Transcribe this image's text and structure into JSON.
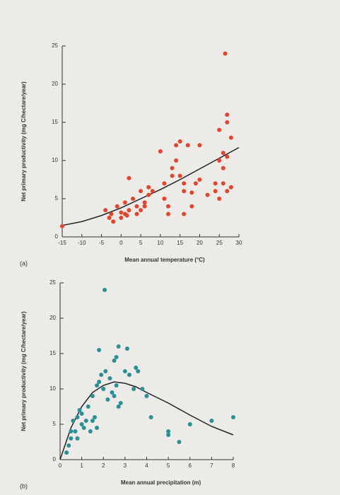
{
  "chart_data": [
    {
      "type": "scatter",
      "panel_label": "(a)",
      "x_label": "Mean annual temperature (°C)",
      "y_label": "Net primary productivity (mg C/hectare/year)",
      "color": "#e2452c",
      "line_color": "#222222",
      "points": {
        "x": [
          -15,
          -4,
          -3,
          -2.5,
          -2,
          -1,
          0,
          0,
          1,
          1,
          1.5,
          2,
          2,
          3,
          4,
          4,
          5,
          5,
          6,
          6,
          7,
          7,
          8,
          10,
          11,
          11,
          12,
          12,
          13,
          13,
          14,
          14,
          15,
          15,
          16,
          16,
          16,
          17,
          18,
          18,
          19,
          20,
          20,
          22,
          24,
          24,
          25,
          25,
          25,
          26,
          26,
          26,
          27,
          27,
          27,
          27,
          28,
          28,
          26.5
        ],
        "values": [
          1.4,
          3.5,
          2.5,
          3,
          2,
          4,
          3.2,
          2.5,
          4.5,
          3,
          2.8,
          3.5,
          7.7,
          5,
          4,
          3,
          3.5,
          6,
          4,
          4.5,
          6.5,
          5.5,
          6,
          11.2,
          7,
          5,
          4,
          3,
          8,
          9,
          10,
          12,
          12.5,
          8,
          6,
          7,
          3,
          12,
          5.8,
          4,
          7,
          12,
          7.5,
          5.5,
          6,
          7,
          5,
          10,
          14,
          11,
          9,
          7,
          6,
          10.5,
          15,
          16,
          13,
          6.5,
          24
        ]
      },
      "trend": {
        "x": [
          -15,
          -10,
          -5,
          0,
          5,
          10,
          15,
          20,
          25,
          30
        ],
        "values": [
          1.5,
          2,
          2.8,
          3.8,
          5,
          6.2,
          7.5,
          8.9,
          10.3,
          11.7
        ]
      },
      "xlim": [
        -15,
        30
      ],
      "xticks": [
        -15,
        -10,
        -5,
        0,
        5,
        10,
        15,
        20,
        25,
        30
      ],
      "ylim": [
        0,
        25
      ],
      "yticks": [
        0,
        5,
        10,
        15,
        20,
        25
      ]
    },
    {
      "type": "scatter",
      "panel_label": "(b)",
      "x_label": "Mean annual precipitation (m)",
      "y_label": "Net primary productivity (mg C/hectare/year)",
      "color": "#2b8f96",
      "line_color": "#222222",
      "points": {
        "x": [
          0.3,
          0.4,
          0.5,
          0.5,
          0.6,
          0.7,
          0.8,
          0.8,
          0.9,
          1,
          1,
          1.1,
          1.2,
          1.3,
          1.4,
          1.5,
          1.5,
          1.6,
          1.7,
          1.7,
          1.8,
          1.8,
          1.9,
          2,
          2.06,
          2.1,
          2.2,
          2.3,
          2.4,
          2.5,
          2.5,
          2.6,
          2.6,
          2.7,
          2.7,
          2.8,
          3,
          3.1,
          3.2,
          3.4,
          3.5,
          3.6,
          3.8,
          4,
          4.2,
          5,
          5,
          5.5,
          6,
          7,
          8
        ],
        "values": [
          1,
          2,
          3,
          4,
          5.5,
          4,
          3,
          6,
          7,
          5,
          6.5,
          4.5,
          5.5,
          7.5,
          4,
          5.5,
          9,
          6,
          4.5,
          10.5,
          11,
          15.5,
          12,
          10,
          24,
          12.5,
          8.5,
          11.5,
          9.5,
          9,
          14,
          10.5,
          14.5,
          7.5,
          16,
          8,
          12.5,
          15.7,
          12,
          10,
          13,
          12.5,
          10,
          9,
          6,
          4,
          3.5,
          2.5,
          5,
          5.5,
          6
        ]
      },
      "trend": {
        "x": [
          0,
          0.5,
          1,
          1.5,
          2,
          2.5,
          3,
          3.5,
          4,
          5,
          6,
          7,
          8
        ],
        "values": [
          0,
          4.5,
          7.5,
          9.5,
          10.5,
          11,
          10.8,
          10.3,
          9.5,
          8,
          6.3,
          4.7,
          3.5
        ]
      },
      "xlim": [
        0,
        8
      ],
      "xticks": [
        0,
        1,
        2,
        3,
        4,
        5,
        6,
        7,
        8
      ],
      "ylim": [
        0,
        25
      ],
      "yticks": [
        0,
        5,
        10,
        15,
        20,
        25
      ]
    }
  ]
}
